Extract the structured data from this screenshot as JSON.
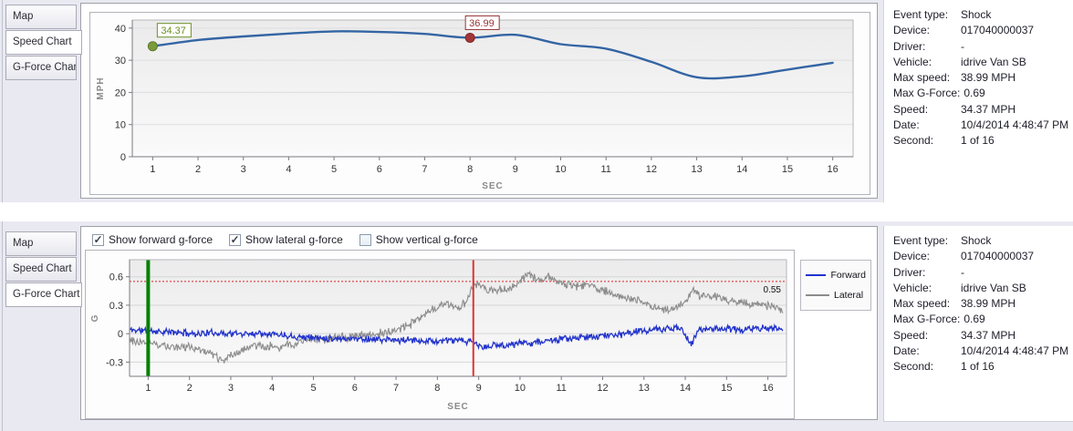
{
  "icons": {
    "check": "✓"
  },
  "event_details": {
    "rows": [
      {
        "label": "Event type:",
        "value": "Shock"
      },
      {
        "label": "Device:",
        "value": "017040000037"
      },
      {
        "label": "Driver:",
        "value": "-"
      },
      {
        "label": "Vehicle:",
        "value": "idrive Van SB"
      },
      {
        "label": "Max speed:",
        "value": "38.99 MPH"
      },
      {
        "label": "Max G-Force:",
        "value": "0.69"
      },
      {
        "label": "Speed:",
        "value": "34.37 MPH"
      },
      {
        "label": "Date:",
        "value": "10/4/2014 4:48:47 PM"
      },
      {
        "label": "Second:",
        "value": "1 of 16"
      }
    ]
  },
  "top_section": {
    "tabs": [
      {
        "label": "Map",
        "active": false
      },
      {
        "label": "Speed Chart",
        "active": true
      },
      {
        "label": "G-Force Chart",
        "active": false
      }
    ]
  },
  "bottom_section": {
    "tabs": [
      {
        "label": "Map",
        "active": false
      },
      {
        "label": "Speed Chart",
        "active": false
      },
      {
        "label": "G-Force Chart",
        "active": true
      }
    ],
    "checkboxes": [
      {
        "label": "Show forward g-force",
        "checked": true
      },
      {
        "label": "Show lateral g-force",
        "checked": true
      },
      {
        "label": "Show vertical g-force",
        "checked": false
      }
    ]
  },
  "chart_data": [
    {
      "type": "line",
      "title": "Speed Chart",
      "xlabel": "SEC",
      "ylabel": "MPH",
      "x": [
        1,
        2,
        3,
        4,
        5,
        6,
        7,
        8,
        9,
        10,
        11,
        12,
        13,
        14,
        15,
        16
      ],
      "series": [
        {
          "name": "Speed",
          "color": "#3465a4",
          "values": [
            34.37,
            36.3,
            37.4,
            38.3,
            38.99,
            38.8,
            38.2,
            36.99,
            37.9,
            35.0,
            33.6,
            29.5,
            24.7,
            25.0,
            27.1,
            29.2
          ]
        }
      ],
      "ylim": [
        0,
        42.5
      ],
      "xlim": [
        0.55,
        16.45
      ],
      "yticks": [
        0,
        10,
        20,
        30,
        40
      ],
      "grid": true,
      "markers": [
        {
          "x": 1,
          "value": 34.37,
          "label": "34.37",
          "color": "#7a9a3c",
          "stroke": "#5c7a2c",
          "label_color": "#6b8e23"
        },
        {
          "x": 8,
          "value": 36.99,
          "label": "36.99",
          "color": "#a33537",
          "stroke": "#802a2c",
          "label_color": "#993335"
        }
      ]
    },
    {
      "type": "line",
      "title": "G-Force Chart",
      "xlabel": "SEC",
      "ylabel": "G",
      "ylim": [
        -0.45,
        0.78
      ],
      "xlim": [
        0.55,
        16.45
      ],
      "yticks": [
        -0.3,
        0,
        0.3,
        0.6
      ],
      "xticks": [
        1,
        2,
        3,
        4,
        5,
        6,
        7,
        8,
        9,
        10,
        11,
        12,
        13,
        14,
        15,
        16
      ],
      "grid": true,
      "legend": [
        "Forward",
        "Lateral"
      ],
      "legend_position": "right",
      "threshold": {
        "value": 0.55,
        "label": "0.55",
        "color": "#dd2222"
      },
      "cursor_lines": [
        {
          "x": 1,
          "color": "#008000",
          "width": 4
        },
        {
          "x": 8.87,
          "color": "#e03232",
          "width": 2
        }
      ],
      "series": [
        {
          "name": "Lateral",
          "color": "#8c8c8c",
          "noise_amplitude": 0.035,
          "keypoints": [
            [
              0.55,
              -0.07
            ],
            [
              1,
              -0.09
            ],
            [
              1.5,
              -0.13
            ],
            [
              2,
              -0.15
            ],
            [
              2.4,
              -0.18
            ],
            [
              2.8,
              -0.28
            ],
            [
              3.1,
              -0.22
            ],
            [
              3.4,
              -0.15
            ],
            [
              3.8,
              -0.13
            ],
            [
              4.2,
              -0.14
            ],
            [
              4.6,
              -0.1
            ],
            [
              5,
              -0.06
            ],
            [
              5.4,
              -0.05
            ],
            [
              5.8,
              -0.04
            ],
            [
              6.2,
              -0.02
            ],
            [
              6.6,
              0
            ],
            [
              7,
              0.04
            ],
            [
              7.3,
              0.09
            ],
            [
              7.6,
              0.16
            ],
            [
              7.9,
              0.25
            ],
            [
              8.1,
              0.3
            ],
            [
              8.3,
              0.32
            ],
            [
              8.5,
              0.27
            ],
            [
              8.7,
              0.33
            ],
            [
              8.87,
              0.52
            ],
            [
              9,
              0.5
            ],
            [
              9.2,
              0.45
            ],
            [
              9.5,
              0.46
            ],
            [
              9.8,
              0.48
            ],
            [
              10,
              0.55
            ],
            [
              10.2,
              0.63
            ],
            [
              10.35,
              0.58
            ],
            [
              10.5,
              0.55
            ],
            [
              10.7,
              0.6
            ],
            [
              10.9,
              0.56
            ],
            [
              11.1,
              0.52
            ],
            [
              11.4,
              0.5
            ],
            [
              11.7,
              0.52
            ],
            [
              12,
              0.45
            ],
            [
              12.3,
              0.42
            ],
            [
              12.6,
              0.38
            ],
            [
              12.9,
              0.34
            ],
            [
              13.2,
              0.28
            ],
            [
              13.5,
              0.25
            ],
            [
              13.8,
              0.28
            ],
            [
              14,
              0.32
            ],
            [
              14.2,
              0.48
            ],
            [
              14.35,
              0.38
            ],
            [
              14.6,
              0.4
            ],
            [
              14.9,
              0.37
            ],
            [
              15.2,
              0.34
            ],
            [
              15.5,
              0.32
            ],
            [
              15.8,
              0.3
            ],
            [
              16.1,
              0.28
            ],
            [
              16.35,
              0.25
            ]
          ]
        },
        {
          "name": "Forward",
          "color": "#2233cc",
          "noise_amplitude": 0.028,
          "keypoints": [
            [
              0.55,
              0.04
            ],
            [
              1,
              0.03
            ],
            [
              1.4,
              0.02
            ],
            [
              1.8,
              0.01
            ],
            [
              2.2,
              0
            ],
            [
              2.6,
              0.01
            ],
            [
              3,
              0
            ],
            [
              3.4,
              0
            ],
            [
              3.8,
              0.01
            ],
            [
              4.2,
              -0.01
            ],
            [
              4.6,
              -0.03
            ],
            [
              5,
              -0.04
            ],
            [
              5.5,
              -0.05
            ],
            [
              6,
              -0.05
            ],
            [
              6.5,
              -0.06
            ],
            [
              7,
              -0.07
            ],
            [
              7.5,
              -0.07
            ],
            [
              8,
              -0.08
            ],
            [
              8.4,
              -0.07
            ],
            [
              8.87,
              -0.09
            ],
            [
              9.1,
              -0.15
            ],
            [
              9.4,
              -0.12
            ],
            [
              9.7,
              -0.12
            ],
            [
              10,
              -0.1
            ],
            [
              10.4,
              -0.09
            ],
            [
              10.8,
              -0.07
            ],
            [
              11.2,
              -0.05
            ],
            [
              11.6,
              -0.04
            ],
            [
              12,
              -0.02
            ],
            [
              12.4,
              -0.01
            ],
            [
              12.8,
              0.02
            ],
            [
              13.2,
              0.04
            ],
            [
              13.6,
              0.05
            ],
            [
              13.9,
              0.06
            ],
            [
              14.15,
              -0.12
            ],
            [
              14.3,
              0.03
            ],
            [
              14.6,
              0.06
            ],
            [
              15,
              0.05
            ],
            [
              15.4,
              0.04
            ],
            [
              15.8,
              0.06
            ],
            [
              16.2,
              0.05
            ],
            [
              16.35,
              0.05
            ]
          ]
        }
      ]
    }
  ]
}
